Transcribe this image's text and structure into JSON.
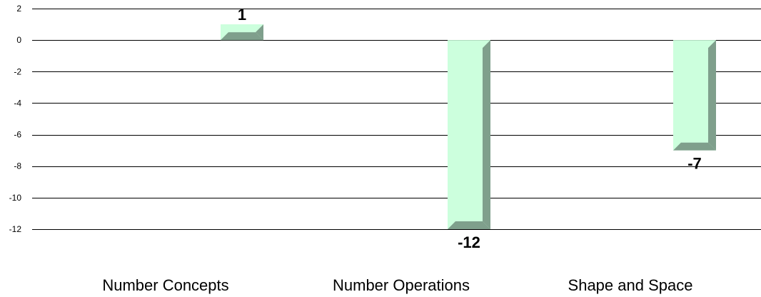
{
  "chart_data": {
    "type": "bar",
    "title": "",
    "xlabel": "",
    "ylabel": "",
    "categories": [
      "Number Concepts",
      "Number Operations",
      "Shape and Space"
    ],
    "values": [
      1,
      -12,
      -7
    ],
    "data_labels": [
      "1",
      "-12",
      "-7"
    ],
    "ylim": [
      -12,
      2
    ],
    "yticks": [
      2,
      0,
      -2,
      -4,
      -6,
      -8,
      -10,
      -12
    ],
    "ytick_labels": [
      "2",
      "0",
      "-2",
      "-4",
      "-6",
      "-8",
      "-10",
      "-12"
    ],
    "grid": true,
    "legend": "none",
    "colors": {
      "bar_face": "#ccffdd",
      "bar_bevel_dark": "#7f9f8c",
      "bar_bevel_light": "#e8fff0",
      "grid": "#000000"
    }
  }
}
